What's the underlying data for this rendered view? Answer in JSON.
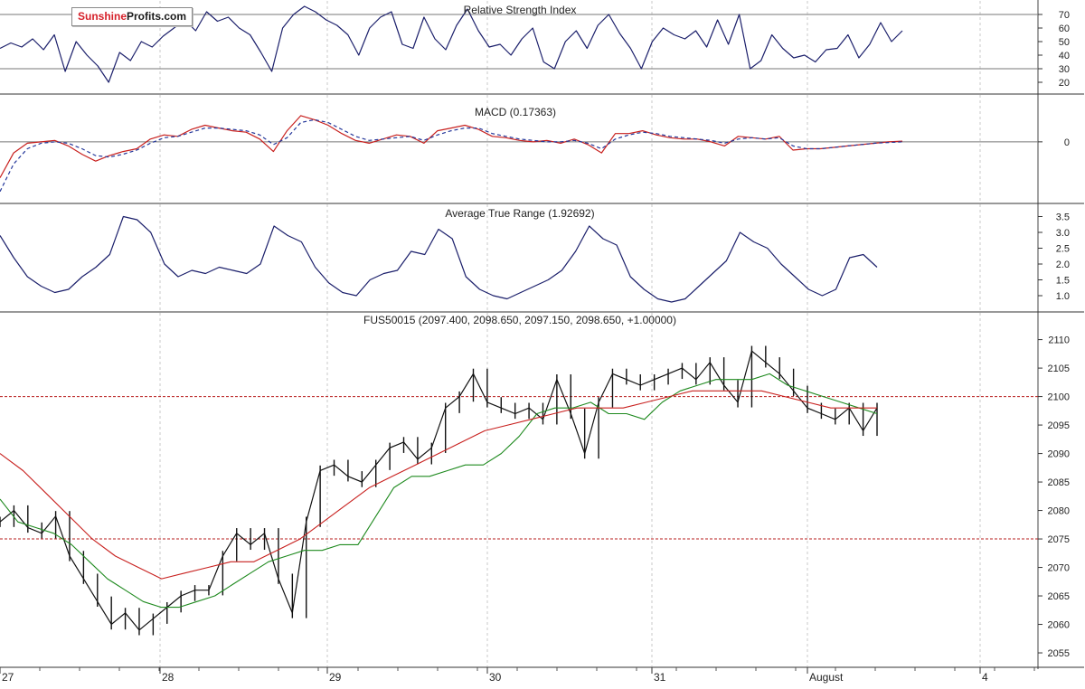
{
  "brand": {
    "part1": "Sunshine",
    "part2": "Profits.com"
  },
  "colors": {
    "price": "#111111",
    "sma_fast": "#1f8a1f",
    "sma_slow": "#c8201e",
    "indicator": "#1b1f6b",
    "macd_signal": "#24379a",
    "grid": "#c9c9c9",
    "ref": "#b71c1c",
    "axis": "#555555"
  },
  "chart_data": [
    {
      "type": "line",
      "title": "Relative Strength Index",
      "ticks": [
        "70",
        "60",
        "50",
        "40",
        "30",
        "20"
      ],
      "ylim": [
        14,
        78
      ],
      "reference_lines": [
        70,
        30
      ],
      "series": [
        {
          "values": [
            45,
            49,
            46,
            52,
            44,
            55,
            28,
            50,
            40,
            32,
            20,
            42,
            36,
            50,
            46,
            54,
            60,
            66,
            58,
            72,
            65,
            68,
            60,
            55,
            42,
            28,
            60,
            70,
            76,
            72,
            66,
            62,
            55,
            40,
            60,
            68,
            72,
            48,
            45,
            68,
            52,
            44,
            62,
            74,
            58,
            46,
            48,
            40,
            52,
            60,
            35,
            30,
            50,
            58,
            45,
            62,
            70,
            56,
            45,
            30,
            50,
            60,
            55,
            52,
            58,
            46,
            66,
            48,
            70,
            30,
            36,
            55,
            45,
            38,
            40,
            35,
            44,
            45,
            55,
            38,
            48,
            64,
            50,
            58
          ]
        }
      ]
    },
    {
      "type": "line",
      "title": "MACD (0.17363)",
      "ticks": [
        "0"
      ],
      "ylim": [
        -4.2,
        3.2
      ],
      "reference_lines": [
        0
      ],
      "series": [
        {
          "values": [
            -2.6,
            -0.8,
            -0.1,
            0.0,
            0.1,
            -0.3,
            -0.9,
            -1.4,
            -1.0,
            -0.7,
            -0.5,
            0.2,
            0.5,
            0.4,
            0.9,
            1.2,
            1.0,
            0.8,
            0.7,
            0.2,
            -0.7,
            0.8,
            1.9,
            1.6,
            1.2,
            0.6,
            0.1,
            -0.1,
            0.2,
            0.5,
            0.4,
            -0.1,
            0.8,
            1.0,
            1.2,
            0.9,
            0.4,
            0.3,
            0.1,
            0.0,
            0.1,
            -0.1,
            0.2,
            -0.2,
            -0.8,
            0.6,
            0.6,
            0.8,
            0.5,
            0.3,
            0.2,
            0.2,
            0.0,
            -0.3,
            0.4,
            0.3,
            0.2,
            0.4,
            -0.6,
            -0.5,
            -0.5,
            -0.4,
            -0.3,
            -0.2,
            -0.1,
            0.0,
            0.05
          ]
        },
        {
          "values": [
            -3.6,
            -1.6,
            -0.5,
            -0.1,
            0.0,
            -0.1,
            -0.5,
            -1.0,
            -1.1,
            -0.9,
            -0.6,
            -0.1,
            0.3,
            0.4,
            0.7,
            1.0,
            1.0,
            0.9,
            0.8,
            0.5,
            -0.2,
            0.3,
            1.4,
            1.6,
            1.4,
            0.9,
            0.4,
            0.1,
            0.2,
            0.3,
            0.4,
            0.1,
            0.5,
            0.8,
            1.0,
            1.0,
            0.6,
            0.4,
            0.2,
            0.1,
            0.0,
            0.0,
            0.1,
            -0.1,
            -0.5,
            0.2,
            0.5,
            0.7,
            0.6,
            0.4,
            0.3,
            0.2,
            0.1,
            -0.1,
            0.2,
            0.3,
            0.2,
            0.3,
            -0.3,
            -0.5,
            -0.5,
            -0.4,
            -0.3,
            -0.2,
            -0.1,
            -0.05,
            0.0
          ]
        }
      ]
    },
    {
      "type": "line",
      "title": "Average True Range (1.92692)",
      "ticks": [
        "3.5",
        "3.0",
        "2.5",
        "2.0",
        "1.5",
        "1.0"
      ],
      "ylim": [
        0.6,
        3.8
      ],
      "series": [
        {
          "values": [
            2.9,
            2.2,
            1.6,
            1.3,
            1.1,
            1.2,
            1.6,
            1.9,
            2.3,
            3.5,
            3.4,
            3.0,
            2.0,
            1.6,
            1.8,
            1.7,
            1.9,
            1.8,
            1.7,
            2.0,
            3.2,
            2.9,
            2.7,
            1.9,
            1.4,
            1.1,
            1.0,
            1.5,
            1.7,
            1.8,
            2.4,
            2.3,
            3.1,
            2.8,
            1.6,
            1.2,
            1.0,
            0.9,
            1.1,
            1.3,
            1.5,
            1.8,
            2.4,
            3.2,
            2.8,
            2.6,
            1.6,
            1.2,
            0.9,
            0.8,
            0.9,
            1.3,
            1.7,
            2.1,
            3.0,
            2.7,
            2.5,
            2.0,
            1.6,
            1.2,
            1.0,
            1.2,
            2.2,
            2.3,
            1.9
          ]
        }
      ]
    },
    {
      "type": "line",
      "title": "FUS50015 (2097.400, 2098.650, 2097.150, 2098.650, +1.00000)",
      "ticks": [
        "2110",
        "2105",
        "2100",
        "2095",
        "2090",
        "2085",
        "2080",
        "2075",
        "2070",
        "2065",
        "2060",
        "2055"
      ],
      "ylim": [
        2053.1,
        2112.0
      ],
      "reference_lines": [
        2100,
        2075
      ],
      "x_labels": [
        "27",
        "28",
        "29",
        "30",
        "31",
        "August",
        "4"
      ],
      "series": [
        {
          "values": [
            2078,
            2080,
            2077,
            2076,
            2079,
            2072,
            2068,
            2064,
            2060,
            2062,
            2059,
            2061,
            2063,
            2065,
            2066,
            2066,
            2072,
            2076,
            2074,
            2076,
            2068,
            2062,
            2078,
            2087,
            2088,
            2086,
            2085,
            2088,
            2091,
            2092,
            2089,
            2091,
            2098,
            2100,
            2104,
            2099,
            2098,
            2097,
            2098,
            2096,
            2103,
            2097,
            2090,
            2099,
            2104,
            2103,
            2102,
            2103,
            2104,
            2105,
            2103,
            2106,
            2102,
            2099,
            2108,
            2106,
            2104,
            2101,
            2098,
            2097,
            2096,
            2098,
            2094,
            2098
          ]
        },
        {
          "values": [
            2082,
            2078,
            2077,
            2076,
            2074,
            2071,
            2068,
            2066,
            2064,
            2063,
            2063,
            2064,
            2065,
            2067,
            2069,
            2071,
            2072,
            2073,
            2073,
            2074,
            2074,
            2079,
            2084,
            2086,
            2086,
            2087,
            2088,
            2088,
            2090,
            2093,
            2097,
            2098,
            2098,
            2099,
            2097,
            2097,
            2096,
            2099,
            2101,
            2102,
            2103,
            2103,
            2103,
            2104,
            2102,
            2101,
            2100,
            2099,
            2098,
            2097
          ]
        },
        {
          "values": [
            2090,
            2087,
            2083,
            2079,
            2075,
            2072,
            2070,
            2068,
            2069,
            2070,
            2071,
            2071,
            2073,
            2075,
            2078,
            2081,
            2084,
            2086,
            2088,
            2090,
            2092,
            2094,
            2095,
            2096,
            2097,
            2098,
            2098,
            2098,
            2099,
            2100,
            2101,
            2101,
            2101,
            2101,
            2100,
            2099,
            2098,
            2098,
            2098
          ]
        }
      ]
    }
  ]
}
